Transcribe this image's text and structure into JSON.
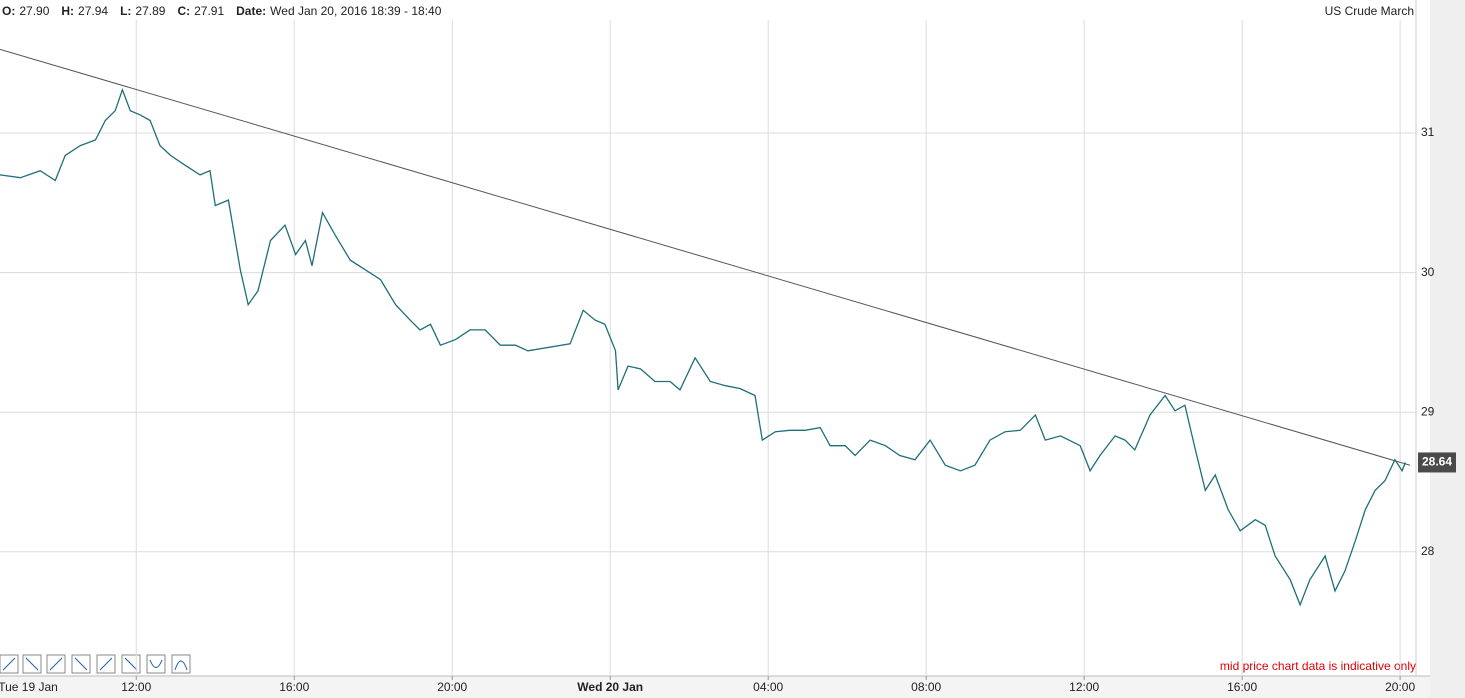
{
  "chart_data": {
    "type": "line",
    "title": "US Crude March",
    "header": [
      {
        "label": "O:",
        "value": "27.90"
      },
      {
        "label": "H:",
        "value": "27.94"
      },
      {
        "label": "L:",
        "value": "27.89"
      },
      {
        "label": "C:",
        "value": "27.91"
      },
      {
        "label": "Date:",
        "value": "Wed Jan 20, 2016 18:39 - 18:40"
      }
    ],
    "note": "mid price chart data is indicative only",
    "x": [
      "2016-01-19T08:33",
      "2016-01-19T09:04",
      "2016-01-19T09:34",
      "2016-01-19T09:57",
      "2016-01-19T10:12",
      "2016-01-19T10:35",
      "2016-01-19T10:58",
      "2016-01-19T11:13",
      "2016-01-19T11:28",
      "2016-01-19T11:39",
      "2016-01-19T11:51",
      "2016-01-19T12:06",
      "2016-01-19T12:21",
      "2016-01-19T12:36",
      "2016-01-19T12:52",
      "2016-01-19T13:14",
      "2016-01-19T13:37",
      "2016-01-19T13:52",
      "2016-01-19T14:00",
      "2016-01-19T14:20",
      "2016-01-19T14:38",
      "2016-01-19T14:50",
      "2016-01-19T15:05",
      "2016-01-19T15:24",
      "2016-01-19T15:46",
      "2016-01-19T16:02",
      "2016-01-19T16:17",
      "2016-01-19T16:27",
      "2016-01-19T16:43",
      "2016-01-19T17:02",
      "2016-01-19T17:25",
      "2016-01-19T17:48",
      "2016-01-19T18:11",
      "2016-01-19T18:34",
      "2016-01-19T18:56",
      "2016-01-19T19:11",
      "2016-01-19T19:27",
      "2016-01-19T19:42",
      "2016-01-19T20:05",
      "2016-01-19T20:27",
      "2016-01-19T20:50",
      "2016-01-19T21:13",
      "2016-01-19T21:36",
      "2016-01-19T21:55",
      "2016-01-19T22:59",
      "2016-01-19T23:19",
      "2016-01-19T23:37",
      "2016-01-19T23:52",
      "2016-01-20T00:08",
      "2016-01-20T00:12",
      "2016-01-20T00:27",
      "2016-01-20T00:46",
      "2016-01-20T01:08",
      "2016-01-20T01:31",
      "2016-01-20T01:46",
      "2016-01-20T02:09",
      "2016-01-20T02:32",
      "2016-01-20T02:55",
      "2016-01-20T03:17",
      "2016-01-20T03:40",
      "2016-01-20T03:51",
      "2016-01-20T04:11",
      "2016-01-20T04:33",
      "2016-01-20T04:56",
      "2016-01-20T05:19",
      "2016-01-20T05:34",
      "2016-01-20T05:57",
      "2016-01-20T06:12",
      "2016-01-20T06:35",
      "2016-01-20T06:58",
      "2016-01-20T07:20",
      "2016-01-20T07:43",
      "2016-01-20T08:06",
      "2016-01-20T08:29",
      "2016-01-20T08:52",
      "2016-01-20T09:14",
      "2016-01-20T09:37",
      "2016-01-20T10:00",
      "2016-01-20T10:23",
      "2016-01-20T10:46",
      "2016-01-20T11:01",
      "2016-01-20T11:24",
      "2016-01-20T11:54",
      "2016-01-20T12:09",
      "2016-01-20T12:24",
      "2016-01-20T12:47",
      "2016-01-20T13:02",
      "2016-01-20T13:17",
      "2016-01-20T13:40",
      "2016-01-20T14:03",
      "2016-01-20T14:18",
      "2016-01-20T14:33",
      "2016-01-20T14:49",
      "2016-01-20T15:04",
      "2016-01-20T15:19",
      "2016-01-20T15:39",
      "2016-01-20T15:57",
      "2016-01-20T16:20",
      "2016-01-20T16:35",
      "2016-01-20T16:50",
      "2016-01-20T17:13",
      "2016-01-20T17:28",
      "2016-01-20T17:43",
      "2016-01-20T18:06",
      "2016-01-20T18:21",
      "2016-01-20T18:36",
      "2016-01-20T18:52",
      "2016-01-20T19:07",
      "2016-01-20T19:22",
      "2016-01-20T19:37",
      "2016-01-20T19:52",
      "2016-01-20T20:03",
      "2016-01-20T20:08"
    ],
    "series": [
      {
        "color": "#1f6f78",
        "values": [
          30.7,
          30.68,
          30.73,
          30.66,
          30.84,
          30.91,
          30.95,
          31.09,
          31.16,
          31.31,
          31.16,
          31.13,
          31.09,
          30.91,
          30.84,
          30.77,
          30.7,
          30.73,
          30.48,
          30.52,
          30.02,
          29.77,
          29.87,
          30.23,
          30.34,
          30.13,
          30.23,
          30.05,
          30.43,
          30.27,
          30.09,
          30.02,
          29.95,
          29.77,
          29.66,
          29.59,
          29.63,
          29.48,
          29.52,
          29.59,
          29.59,
          29.48,
          29.48,
          29.44,
          29.49,
          29.73,
          29.66,
          29.63,
          29.44,
          29.16,
          29.33,
          29.31,
          29.22,
          29.22,
          29.16,
          29.39,
          29.22,
          29.19,
          29.17,
          29.12,
          28.8,
          28.86,
          28.87,
          28.87,
          28.89,
          28.76,
          28.76,
          28.69,
          28.8,
          28.76,
          28.69,
          28.66,
          28.8,
          28.62,
          28.58,
          28.62,
          28.8,
          28.86,
          28.87,
          28.98,
          28.8,
          28.83,
          28.76,
          28.58,
          28.69,
          28.83,
          28.8,
          28.73,
          28.98,
          29.12,
          29.01,
          29.05,
          28.73,
          28.44,
          28.55,
          28.3,
          28.15,
          28.23,
          28.19,
          27.97,
          27.8,
          27.62,
          27.8,
          27.97,
          27.72,
          27.86,
          28.08,
          28.3,
          28.44,
          28.51,
          28.66,
          28.58,
          28.64
        ]
      }
    ],
    "trendline": {
      "color": "#555555",
      "x": [
        "2016-01-19T08:33",
        "2016-01-20T20:15"
      ],
      "values": [
        31.6,
        28.62
      ]
    },
    "last_price": 28.64,
    "xlim": [
      "2016-01-19T08:33",
      "2016-01-20T20:15"
    ],
    "xticks": [
      {
        "value": "2016-01-19T08:00",
        "label": "Tue 19 Jan"
      },
      {
        "value": "2016-01-19T12:00",
        "label": "12:00"
      },
      {
        "value": "2016-01-19T16:00",
        "label": "16:00"
      },
      {
        "value": "2016-01-19T20:00",
        "label": "20:00"
      },
      {
        "value": "2016-01-20T00:00",
        "label": "Wed 20 Jan"
      },
      {
        "value": "2016-01-20T04:00",
        "label": "04:00"
      },
      {
        "value": "2016-01-20T08:00",
        "label": "08:00"
      },
      {
        "value": "2016-01-20T12:00",
        "label": "12:00"
      },
      {
        "value": "2016-01-20T16:00",
        "label": "16:00"
      },
      {
        "value": "2016-01-20T20:00",
        "label": "20:00"
      }
    ],
    "ylim": [
      27.11,
      31.81
    ],
    "yticks": [
      28,
      29,
      30,
      31
    ],
    "grid": true
  }
}
